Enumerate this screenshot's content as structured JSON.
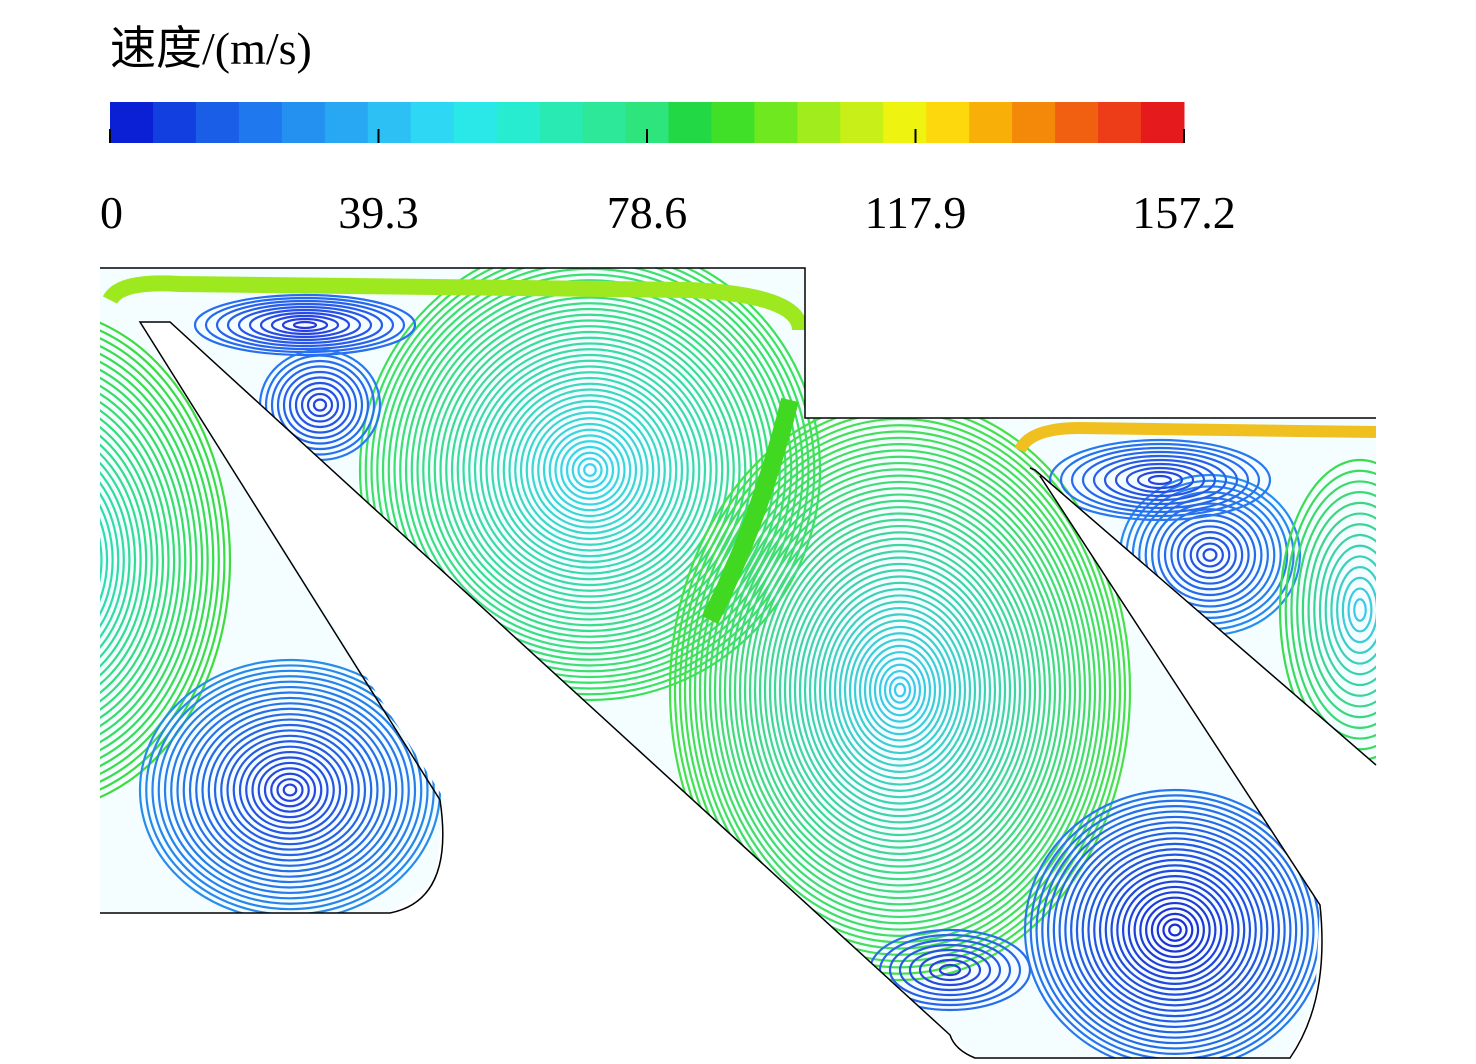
{
  "chart_data": {
    "type": "streamline",
    "colorbar": {
      "title": "速度/(m/s)",
      "lim": [
        0,
        157.2
      ],
      "ticks": [
        0,
        39.3,
        78.6,
        117.9,
        157.2
      ],
      "colors": [
        "#0b1fd4",
        "#1240e0",
        "#1a5ee8",
        "#2078ee",
        "#2490f0",
        "#28a8f2",
        "#2cc0f4",
        "#2ed8f4",
        "#2ae8e8",
        "#28ecd0",
        "#2aeab4",
        "#2ce898",
        "#2ee47c",
        "#22d844",
        "#40e028",
        "#70e820",
        "#a0ec1c",
        "#c8f018",
        "#eef410",
        "#fcd80c",
        "#f8b008",
        "#f48808",
        "#f06010",
        "#ec3c18",
        "#e41a1c"
      ]
    }
  }
}
